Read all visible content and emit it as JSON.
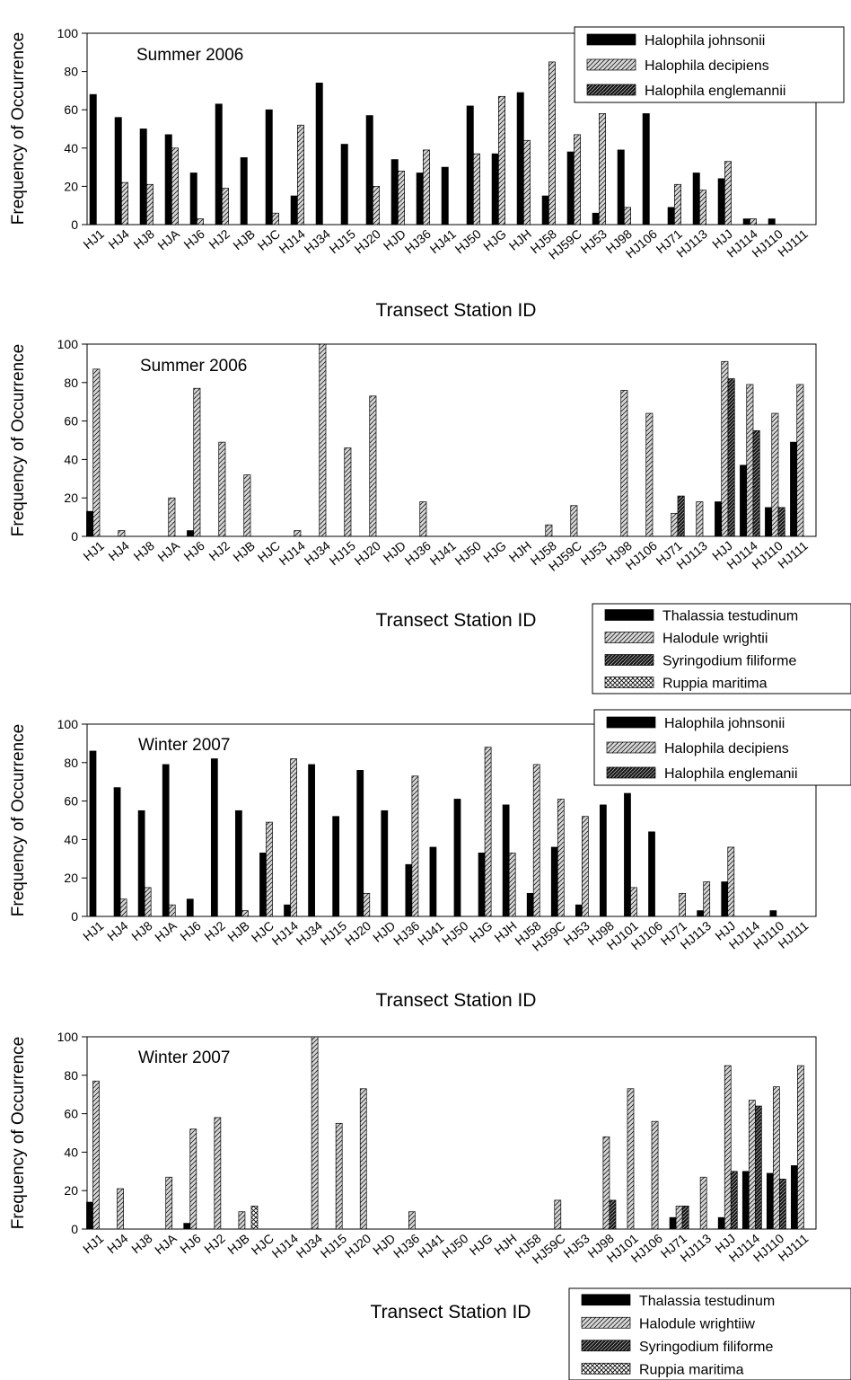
{
  "chart_data": [
    {
      "type": "bar",
      "title": "Summer 2006",
      "xlabel": "Transect Station ID",
      "ylabel": "Frequency of Occurrence",
      "ylim": [
        0,
        100
      ],
      "yticks": [
        0,
        20,
        40,
        60,
        80,
        100
      ],
      "legend": "top-right",
      "categories": [
        "HJ1",
        "HJ4",
        "HJ8",
        "HJA",
        "HJ6",
        "HJ2",
        "HJB",
        "HJC",
        "HJ14",
        "HJ34",
        "HJ15",
        "HJ20",
        "HJD",
        "HJ36",
        "HJ41",
        "HJ50",
        "HJG",
        "HJH",
        "HJ58",
        "HJ59C",
        "HJ53",
        "HJ98",
        "HJ106",
        "HJ71",
        "HJ113",
        "HJJ",
        "HJ114",
        "HJ110",
        "HJ111"
      ],
      "series": [
        {
          "name": "Halophila johnsonii",
          "pattern": "solid",
          "values": [
            68,
            56,
            50,
            47,
            27,
            63,
            35,
            60,
            15,
            74,
            42,
            57,
            34,
            27,
            30,
            62,
            37,
            69,
            15,
            38,
            6,
            39,
            58,
            9,
            27,
            24,
            3,
            3,
            0
          ]
        },
        {
          "name": "Halophila decipiens",
          "pattern": "hatch-light",
          "values": [
            0,
            22,
            21,
            40,
            3,
            19,
            0,
            6,
            52,
            0,
            0,
            20,
            28,
            39,
            0,
            37,
            67,
            44,
            85,
            47,
            58,
            9,
            0,
            21,
            18,
            33,
            3,
            0,
            0
          ]
        },
        {
          "name": "Halophila englemannii",
          "pattern": "hatch-dark",
          "values": [
            0,
            0,
            0,
            0,
            0,
            0,
            0,
            0,
            0,
            0,
            0,
            0,
            0,
            0,
            0,
            0,
            0,
            0,
            0,
            0,
            0,
            0,
            0,
            0,
            0,
            0,
            0,
            0,
            0
          ]
        }
      ]
    },
    {
      "type": "bar",
      "title": "Summer 2006",
      "xlabel": "Transect Station ID",
      "ylabel": "Frequency of Occurrence",
      "ylim": [
        0,
        100
      ],
      "yticks": [
        0,
        20,
        40,
        60,
        80,
        100
      ],
      "legend": "bottom-right",
      "categories": [
        "HJ1",
        "HJ4",
        "HJ8",
        "HJA",
        "HJ6",
        "HJ2",
        "HJB",
        "HJC",
        "HJ14",
        "HJ34",
        "HJ15",
        "HJ20",
        "HJD",
        "HJ36",
        "HJ41",
        "HJ50",
        "HJG",
        "HJH",
        "HJ58",
        "HJ59C",
        "HJ53",
        "HJ98",
        "HJ106",
        "HJ71",
        "HJ113",
        "HJJ",
        "HJ114",
        "HJ110",
        "HJ111"
      ],
      "series": [
        {
          "name": "Thalassia testudinum",
          "pattern": "solid",
          "values": [
            13,
            0,
            0,
            0,
            3,
            0,
            0,
            0,
            0,
            0,
            0,
            0,
            0,
            0,
            0,
            0,
            0,
            0,
            0,
            0,
            0,
            0,
            0,
            0,
            0,
            18,
            37,
            15,
            49
          ]
        },
        {
          "name": "Halodule wrightii",
          "pattern": "hatch-light",
          "values": [
            87,
            3,
            0,
            20,
            77,
            49,
            32,
            0,
            3,
            100,
            46,
            73,
            0,
            18,
            0,
            0,
            0,
            0,
            6,
            16,
            0,
            76,
            64,
            12,
            18,
            91,
            79,
            64,
            79
          ]
        },
        {
          "name": "Syringodium filiforme",
          "pattern": "hatch-dark",
          "values": [
            0,
            0,
            0,
            0,
            0,
            0,
            0,
            0,
            0,
            0,
            0,
            0,
            0,
            0,
            0,
            0,
            0,
            0,
            0,
            0,
            0,
            0,
            0,
            21,
            0,
            82,
            55,
            15,
            0
          ]
        },
        {
          "name": "Ruppia maritima",
          "pattern": "crosshatch",
          "values": [
            0,
            0,
            0,
            0,
            0,
            0,
            0,
            0,
            0,
            0,
            0,
            0,
            0,
            0,
            0,
            0,
            0,
            0,
            0,
            0,
            0,
            0,
            0,
            0,
            0,
            0,
            0,
            0,
            0
          ]
        }
      ]
    },
    {
      "type": "bar",
      "title": "Winter 2007",
      "xlabel": "Transect Station ID",
      "ylabel": "Frequency of Occurrence",
      "ylim": [
        0,
        100
      ],
      "yticks": [
        0,
        20,
        40,
        60,
        80,
        100
      ],
      "legend": "top-right",
      "categories": [
        "HJ1",
        "HJ4",
        "HJ8",
        "HJA",
        "HJ6",
        "HJ2",
        "HJB",
        "HJC",
        "HJ14",
        "HJ34",
        "HJ15",
        "HJ20",
        "HJD",
        "HJ36",
        "HJ41",
        "HJ50",
        "HJG",
        "HJH",
        "HJ58",
        "HJ59C",
        "HJ53",
        "HJ98",
        "HJ101",
        "HJ106",
        "HJ71",
        "HJ113",
        "HJJ",
        "HJ114",
        "HJ110",
        "HJ111"
      ],
      "series": [
        {
          "name": "Halophila johnsonii",
          "pattern": "solid",
          "values": [
            86,
            67,
            55,
            79,
            9,
            82,
            55,
            33,
            6,
            79,
            52,
            76,
            55,
            27,
            36,
            61,
            33,
            58,
            12,
            36,
            6,
            58,
            64,
            44,
            0,
            3,
            18,
            0,
            3,
            0
          ]
        },
        {
          "name": "Halophila decipiens",
          "pattern": "hatch-light",
          "values": [
            0,
            9,
            15,
            6,
            0,
            0,
            3,
            49,
            82,
            0,
            0,
            12,
            0,
            73,
            0,
            0,
            88,
            33,
            79,
            61,
            52,
            0,
            15,
            0,
            12,
            18,
            36,
            0,
            0,
            0
          ]
        },
        {
          "name": "Halophila englemanii",
          "pattern": "hatch-dark",
          "values": [
            0,
            0,
            0,
            0,
            0,
            0,
            0,
            0,
            0,
            0,
            0,
            0,
            0,
            0,
            0,
            0,
            0,
            0,
            0,
            0,
            0,
            0,
            0,
            0,
            0,
            0,
            0,
            0,
            0,
            0
          ]
        }
      ]
    },
    {
      "type": "bar",
      "title": "Winter 2007",
      "xlabel": "Transect Station ID",
      "ylabel": "Frequency of Occurrence",
      "ylim": [
        0,
        100
      ],
      "yticks": [
        0,
        20,
        40,
        60,
        80,
        100
      ],
      "legend": "bottom-right",
      "categories": [
        "HJ1",
        "HJ4",
        "HJ8",
        "HJA",
        "HJ6",
        "HJ2",
        "HJB",
        "HJC",
        "HJ14",
        "HJ34",
        "HJ15",
        "HJ20",
        "HJD",
        "HJ36",
        "HJ41",
        "HJ50",
        "HJG",
        "HJH",
        "HJ58",
        "HJ59C",
        "HJ53",
        "HJ98",
        "HJ101",
        "HJ106",
        "HJ71",
        "HJ113",
        "HJJ",
        "HJ114",
        "HJ110",
        "HJ111"
      ],
      "series": [
        {
          "name": "Thalassia testudinum",
          "pattern": "solid",
          "values": [
            14,
            0,
            0,
            0,
            3,
            0,
            0,
            0,
            0,
            0,
            0,
            0,
            0,
            0,
            0,
            0,
            0,
            0,
            0,
            0,
            0,
            0,
            0,
            0,
            6,
            0,
            6,
            30,
            29,
            33
          ]
        },
        {
          "name": "Halodule wrightiiw",
          "pattern": "hatch-light",
          "values": [
            77,
            21,
            0,
            27,
            52,
            58,
            9,
            0,
            0,
            100,
            55,
            73,
            0,
            9,
            0,
            0,
            0,
            0,
            0,
            15,
            0,
            48,
            73,
            56,
            12,
            27,
            85,
            67,
            74,
            85
          ]
        },
        {
          "name": "Syringodium filiforme",
          "pattern": "hatch-dark",
          "values": [
            0,
            0,
            0,
            0,
            0,
            0,
            0,
            0,
            0,
            0,
            0,
            0,
            0,
            0,
            0,
            0,
            0,
            0,
            0,
            0,
            0,
            15,
            0,
            0,
            12,
            0,
            30,
            64,
            26,
            0
          ]
        },
        {
          "name": "Ruppia maritima",
          "pattern": "crosshatch",
          "values": [
            0,
            0,
            0,
            0,
            0,
            0,
            12,
            0,
            0,
            0,
            0,
            0,
            0,
            0,
            0,
            0,
            0,
            0,
            0,
            0,
            0,
            0,
            0,
            0,
            0,
            0,
            0,
            0,
            0,
            0
          ]
        }
      ]
    }
  ]
}
